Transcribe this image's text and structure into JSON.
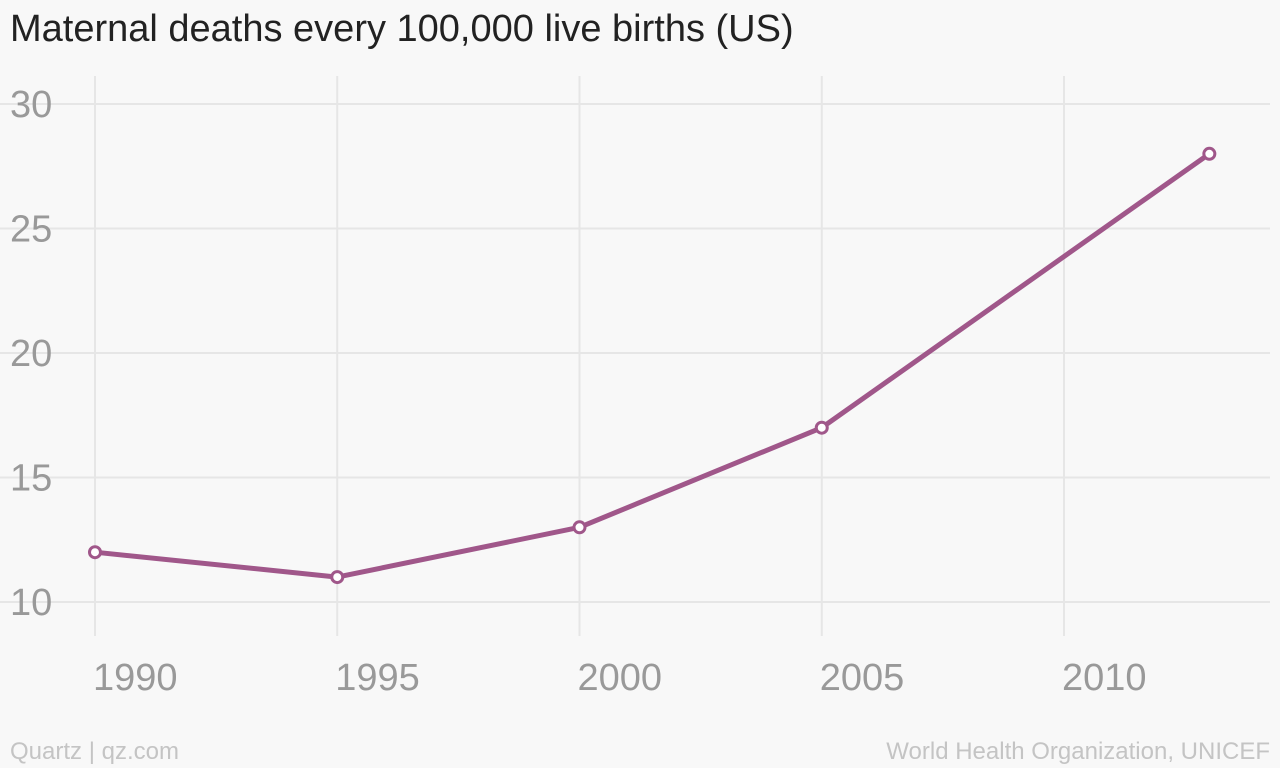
{
  "title": "Maternal deaths every 100,000 live births (US)",
  "footer": {
    "left": "Quartz | qz.com",
    "right": "World Health Organization, UNICEF"
  },
  "colors": {
    "line": "#a0578a",
    "grid": "#e6e6e6",
    "tick_text": "#999999",
    "background": "#f8f8f8"
  },
  "chart_data": {
    "type": "line",
    "title": "Maternal deaths every 100,000 live births (US)",
    "xlabel": "",
    "ylabel": "",
    "grid": true,
    "legend": "none",
    "xlim": [
      1990,
      2013
    ],
    "ylim": [
      10,
      30
    ],
    "x_ticks": [
      1990,
      1995,
      2000,
      2005,
      2010
    ],
    "y_ticks": [
      10,
      15,
      20,
      25,
      30
    ],
    "series": [
      {
        "x": [
          1990,
          1995,
          2000,
          2005,
          2013
        ],
        "y": [
          12,
          11,
          13,
          17,
          28
        ]
      }
    ]
  }
}
